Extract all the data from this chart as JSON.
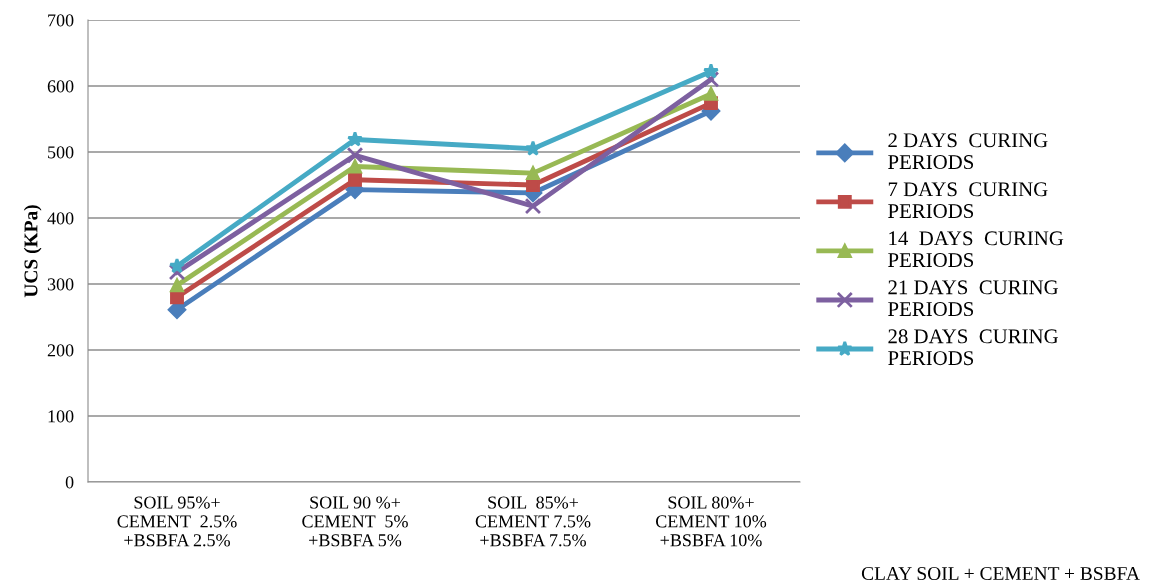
{
  "chart_data": {
    "type": "line",
    "ylabel": "UCS (KPa)",
    "xlabel": "CLAY SOIL + CEMENT + BSBFA",
    "categories": [
      "SOIL 95%+\nCEMENT  2.5%\n+BSBFA 2.5%",
      "SOIL 90 %+\nCEMENT  5%\n+BSBFA 5%",
      "SOIL  85%+\nCEMENT 7.5%\n+BSBFA 7.5%",
      "SOIL 80%+\nCEMENT 10%\n+BSBFA 10%"
    ],
    "series": [
      {
        "name": "2 DAYS  CURING\nPERIODS",
        "color": "#4a7ebb",
        "marker": "diamond",
        "values": [
          261,
          443,
          438,
          562
        ]
      },
      {
        "name": "7 DAYS  CURING\nPERIODS",
        "color": "#be4b48",
        "marker": "square",
        "values": [
          280,
          458,
          450,
          574
        ]
      },
      {
        "name": "14  DAYS  CURING\nPERIODS",
        "color": "#98b954",
        "marker": "triangle",
        "values": [
          298,
          478,
          468,
          588
        ]
      },
      {
        "name": "21 DAYS  CURING\nPERIODS",
        "color": "#7d60a0",
        "marker": "cross",
        "values": [
          318,
          495,
          418,
          610
        ]
      },
      {
        "name": "28 DAYS  CURING\nPERIODS",
        "color": "#46aac5",
        "marker": "star",
        "values": [
          327,
          519,
          505,
          622
        ]
      }
    ],
    "ylim": [
      0,
      700
    ],
    "yticks": [
      0,
      100,
      200,
      300,
      400,
      500,
      600,
      700
    ],
    "grid": "y",
    "legend": "right",
    "line_style": "solid"
  }
}
